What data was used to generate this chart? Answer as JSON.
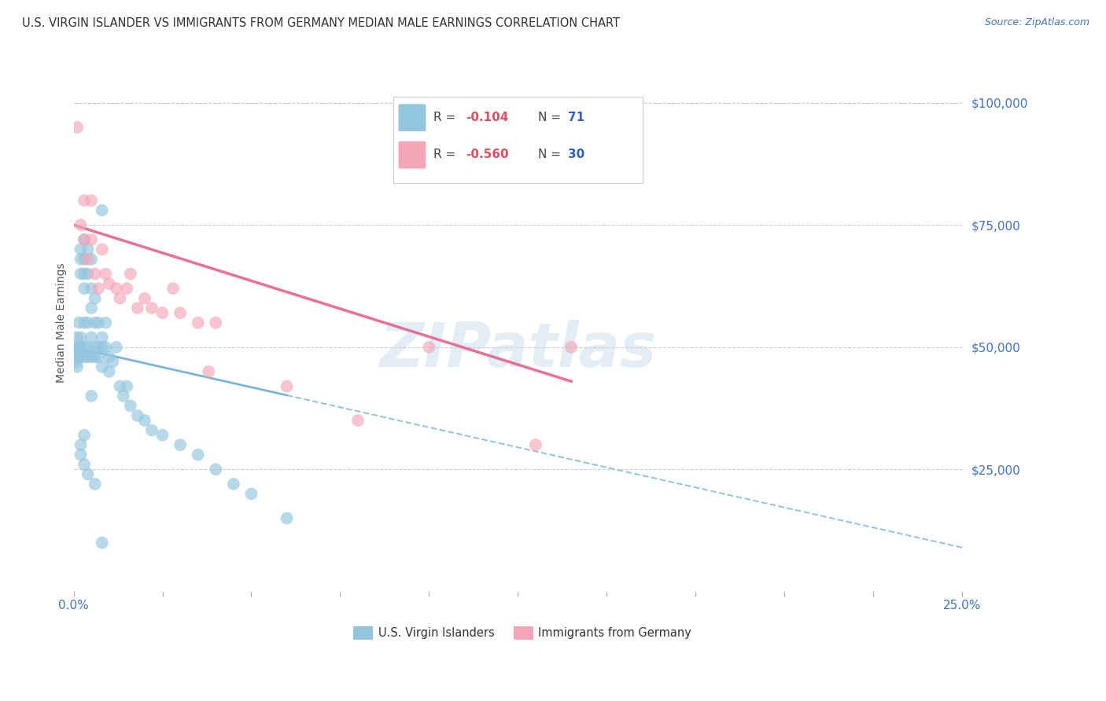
{
  "title": "U.S. VIRGIN ISLANDER VS IMMIGRANTS FROM GERMANY MEDIAN MALE EARNINGS CORRELATION CHART",
  "source": "Source: ZipAtlas.com",
  "ylabel": "Median Male Earnings",
  "ytick_labels": [
    "$25,000",
    "$50,000",
    "$75,000",
    "$100,000"
  ],
  "ytick_values": [
    25000,
    50000,
    75000,
    100000
  ],
  "xmin": 0.0,
  "xmax": 0.25,
  "ymin": 0,
  "ymax": 110000,
  "legend_r1_val": "-0.104",
  "legend_n1_val": "71",
  "legend_r2_val": "-0.560",
  "legend_n2_val": "30",
  "label_blue": "U.S. Virgin Islanders",
  "label_pink": "Immigrants from Germany",
  "color_blue": "#92c5de",
  "color_pink": "#f4a5b8",
  "color_blue_line": "#6baed6",
  "color_pink_line": "#e8608a",
  "watermark": "ZIPatlas",
  "blue_scatter_x": [
    0.0005,
    0.0008,
    0.001,
    0.001,
    0.001,
    0.0012,
    0.0015,
    0.0015,
    0.0015,
    0.002,
    0.002,
    0.002,
    0.002,
    0.002,
    0.002,
    0.003,
    0.003,
    0.003,
    0.003,
    0.003,
    0.003,
    0.003,
    0.004,
    0.004,
    0.004,
    0.004,
    0.004,
    0.005,
    0.005,
    0.005,
    0.005,
    0.005,
    0.006,
    0.006,
    0.006,
    0.006,
    0.007,
    0.007,
    0.007,
    0.008,
    0.008,
    0.008,
    0.009,
    0.009,
    0.01,
    0.01,
    0.011,
    0.012,
    0.013,
    0.014,
    0.015,
    0.016,
    0.018,
    0.02,
    0.022,
    0.025,
    0.03,
    0.035,
    0.04,
    0.045,
    0.05,
    0.06,
    0.008,
    0.005,
    0.003,
    0.002,
    0.002,
    0.003,
    0.004,
    0.006,
    0.008
  ],
  "blue_scatter_y": [
    49000,
    47000,
    52000,
    48000,
    46000,
    50000,
    55000,
    48000,
    50000,
    70000,
    65000,
    68000,
    50000,
    52000,
    48000,
    72000,
    68000,
    65000,
    62000,
    55000,
    50000,
    48000,
    70000,
    65000,
    55000,
    50000,
    48000,
    68000,
    62000,
    58000,
    52000,
    48000,
    60000,
    55000,
    50000,
    48000,
    55000,
    50000,
    48000,
    52000,
    50000,
    46000,
    55000,
    50000,
    48000,
    45000,
    47000,
    50000,
    42000,
    40000,
    42000,
    38000,
    36000,
    35000,
    33000,
    32000,
    30000,
    28000,
    25000,
    22000,
    20000,
    15000,
    78000,
    40000,
    32000,
    30000,
    28000,
    26000,
    24000,
    22000,
    10000
  ],
  "pink_scatter_x": [
    0.001,
    0.002,
    0.003,
    0.003,
    0.004,
    0.005,
    0.005,
    0.006,
    0.007,
    0.008,
    0.009,
    0.01,
    0.012,
    0.013,
    0.015,
    0.016,
    0.018,
    0.02,
    0.022,
    0.025,
    0.028,
    0.03,
    0.035,
    0.038,
    0.04,
    0.06,
    0.08,
    0.1,
    0.13,
    0.14
  ],
  "pink_scatter_y": [
    95000,
    75000,
    80000,
    72000,
    68000,
    80000,
    72000,
    65000,
    62000,
    70000,
    65000,
    63000,
    62000,
    60000,
    62000,
    65000,
    58000,
    60000,
    58000,
    57000,
    62000,
    57000,
    55000,
    45000,
    55000,
    42000,
    35000,
    50000,
    30000,
    50000
  ],
  "blue_line_x": [
    0.0,
    0.25
  ],
  "blue_line_y": [
    50000,
    9000
  ],
  "pink_line_x": [
    0.0,
    0.14
  ],
  "pink_line_y": [
    75000,
    43000
  ]
}
